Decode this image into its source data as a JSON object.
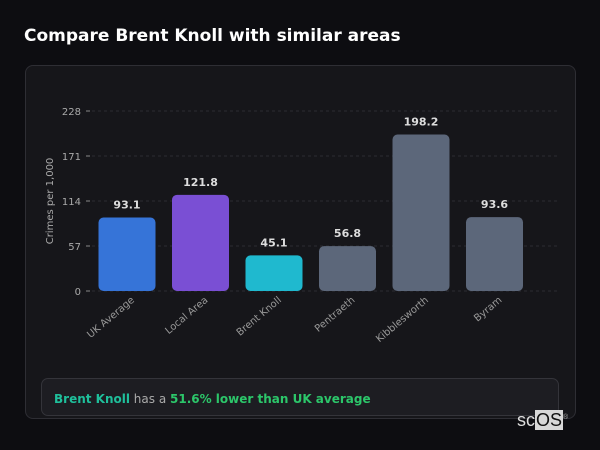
{
  "title": "Compare Brent Knoll with similar areas",
  "chart_data": {
    "type": "bar",
    "ylabel": "Crimes per 1,000",
    "yticks": [
      0,
      57,
      114,
      171,
      228
    ],
    "ylim": [
      0,
      228
    ],
    "grid": true,
    "categories": [
      "UK Average",
      "Local Area",
      "Brent Knoll",
      "Pentraeth",
      "Kibblesworth",
      "Byram"
    ],
    "values": [
      93.1,
      121.8,
      45.1,
      56.8,
      198.2,
      93.6
    ],
    "colors": [
      "#3674d8",
      "#7a4fd4",
      "#1fb9cf",
      "#5c677a",
      "#5c677a",
      "#5c677a"
    ]
  },
  "summary": {
    "place": "Brent Knoll",
    "middle": " has a ",
    "stat": "51.6% lower than UK average"
  },
  "logo": {
    "text1": "sc",
    "text2": "OS"
  }
}
